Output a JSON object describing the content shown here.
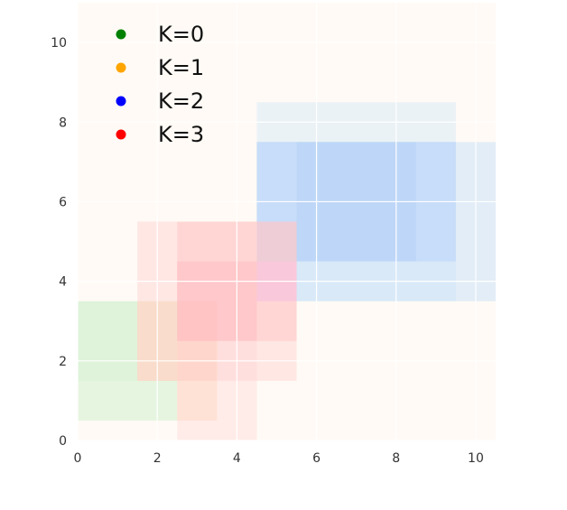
{
  "chart_data": {
    "type": "heatmap",
    "title": "",
    "xlabel": "",
    "ylabel": "",
    "xlim": [
      0,
      10.5
    ],
    "ylim": [
      0,
      11
    ],
    "x_ticks": [
      0,
      2,
      4,
      6,
      8,
      10
    ],
    "y_ticks": [
      0,
      2,
      4,
      6,
      8,
      10
    ],
    "x_tick_labels": [
      "0",
      "2",
      "4",
      "6",
      "8",
      "10"
    ],
    "y_tick_labels": [
      "0",
      "2",
      "4",
      "6",
      "8",
      "10"
    ],
    "grid": true,
    "grid_color": "#ffffff",
    "legend_position": "top-left",
    "background_color": "#fffaf5",
    "legend": [
      {
        "label": "K=0",
        "color": "#008000"
      },
      {
        "label": "K=1",
        "color": "#ffa500"
      },
      {
        "label": "K=2",
        "color": "#0000ff"
      },
      {
        "label": "K=3",
        "color": "#ff0000"
      }
    ],
    "regions": [
      {
        "class": "K=0",
        "color": "#c8f0c8",
        "opacity": 0.45,
        "x": [
          0,
          2.5
        ],
        "y": [
          0.5,
          3.5
        ]
      },
      {
        "class": "K=0",
        "color": "#c8f0c8",
        "opacity": 0.25,
        "x": [
          0,
          1.5
        ],
        "y": [
          1.5,
          3.5
        ]
      },
      {
        "class": "K=1",
        "color": "#ffd8b0",
        "opacity": 0.55,
        "x": [
          1.5,
          3.5
        ],
        "y": [
          1.5,
          3.5
        ]
      },
      {
        "class": "K=1",
        "color": "#ffd8b0",
        "opacity": 0.4,
        "x": [
          2.5,
          3.5
        ],
        "y": [
          0.5,
          2.5
        ]
      },
      {
        "class": "K=2",
        "color": "#d8eaf8",
        "opacity": 0.5,
        "x": [
          4.5,
          9.5
        ],
        "y": [
          3.5,
          8.5
        ]
      },
      {
        "class": "K=2",
        "color": "#c8e0fa",
        "opacity": 0.5,
        "x": [
          4.5,
          10.5
        ],
        "y": [
          3.5,
          7.5
        ]
      },
      {
        "class": "K=2",
        "color": "#b8d4fa",
        "opacity": 0.55,
        "x": [
          4.5,
          9.5
        ],
        "y": [
          4.5,
          7.5
        ]
      },
      {
        "class": "K=2",
        "color": "#b0ccf6",
        "opacity": 0.35,
        "x": [
          5.5,
          8.5
        ],
        "y": [
          4.5,
          7.5
        ]
      },
      {
        "class": "K=3",
        "color": "#ffd0d0",
        "opacity": 0.45,
        "x": [
          1.5,
          5.5
        ],
        "y": [
          1.5,
          5.5
        ]
      },
      {
        "class": "K=3",
        "color": "#ffc0c0",
        "opacity": 0.45,
        "x": [
          2.5,
          5.5
        ],
        "y": [
          2.5,
          5.5
        ]
      },
      {
        "class": "K=3",
        "color": "#ffb0b8",
        "opacity": 0.35,
        "x": [
          2.5,
          4.5
        ],
        "y": [
          2.5,
          4.5
        ]
      },
      {
        "class": "K=3",
        "color": "#ffd0d0",
        "opacity": 0.35,
        "x": [
          2.5,
          4.5
        ],
        "y": [
          0,
          2.5
        ]
      },
      {
        "class": "K=3",
        "color": "#ffc0e0",
        "opacity": 0.5,
        "x": [
          4.5,
          5.5
        ],
        "y": [
          3.5,
          4.5
        ]
      }
    ]
  }
}
